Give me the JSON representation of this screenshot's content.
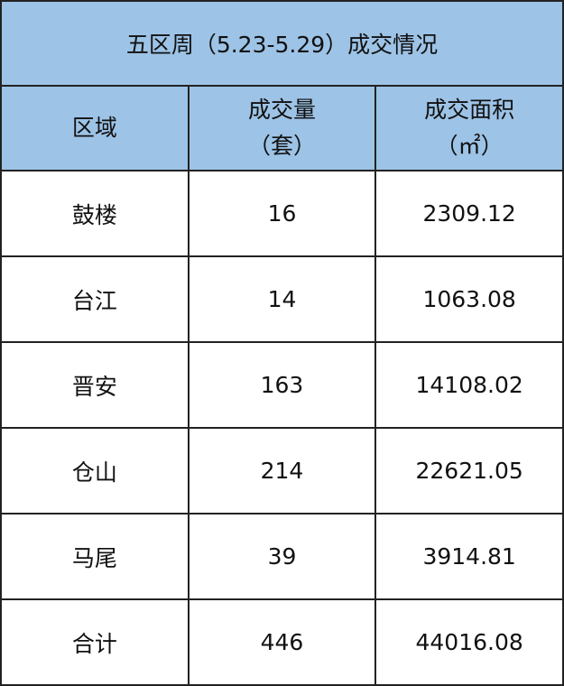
{
  "title": "五区周（5.23-5.29）成交情况",
  "colors": {
    "header_bg": "#9dc3e6",
    "border": "#222222"
  },
  "headers": [
    {
      "line1": "区域",
      "line2": ""
    },
    {
      "line1": "成交量",
      "line2": "（套）"
    },
    {
      "line1": "成交面积",
      "line2": "（㎡）"
    }
  ],
  "rows": [
    {
      "district": "鼓楼",
      "units": "16",
      "area": "2309.12"
    },
    {
      "district": "台江",
      "units": "14",
      "area": "1063.08"
    },
    {
      "district": "晋安",
      "units": "163",
      "area": "14108.02"
    },
    {
      "district": "仓山",
      "units": "214",
      "area": "22621.05"
    },
    {
      "district": "马尾",
      "units": "39",
      "area": "3914.81"
    },
    {
      "district": "合计",
      "units": "446",
      "area": "44016.08"
    }
  ]
}
